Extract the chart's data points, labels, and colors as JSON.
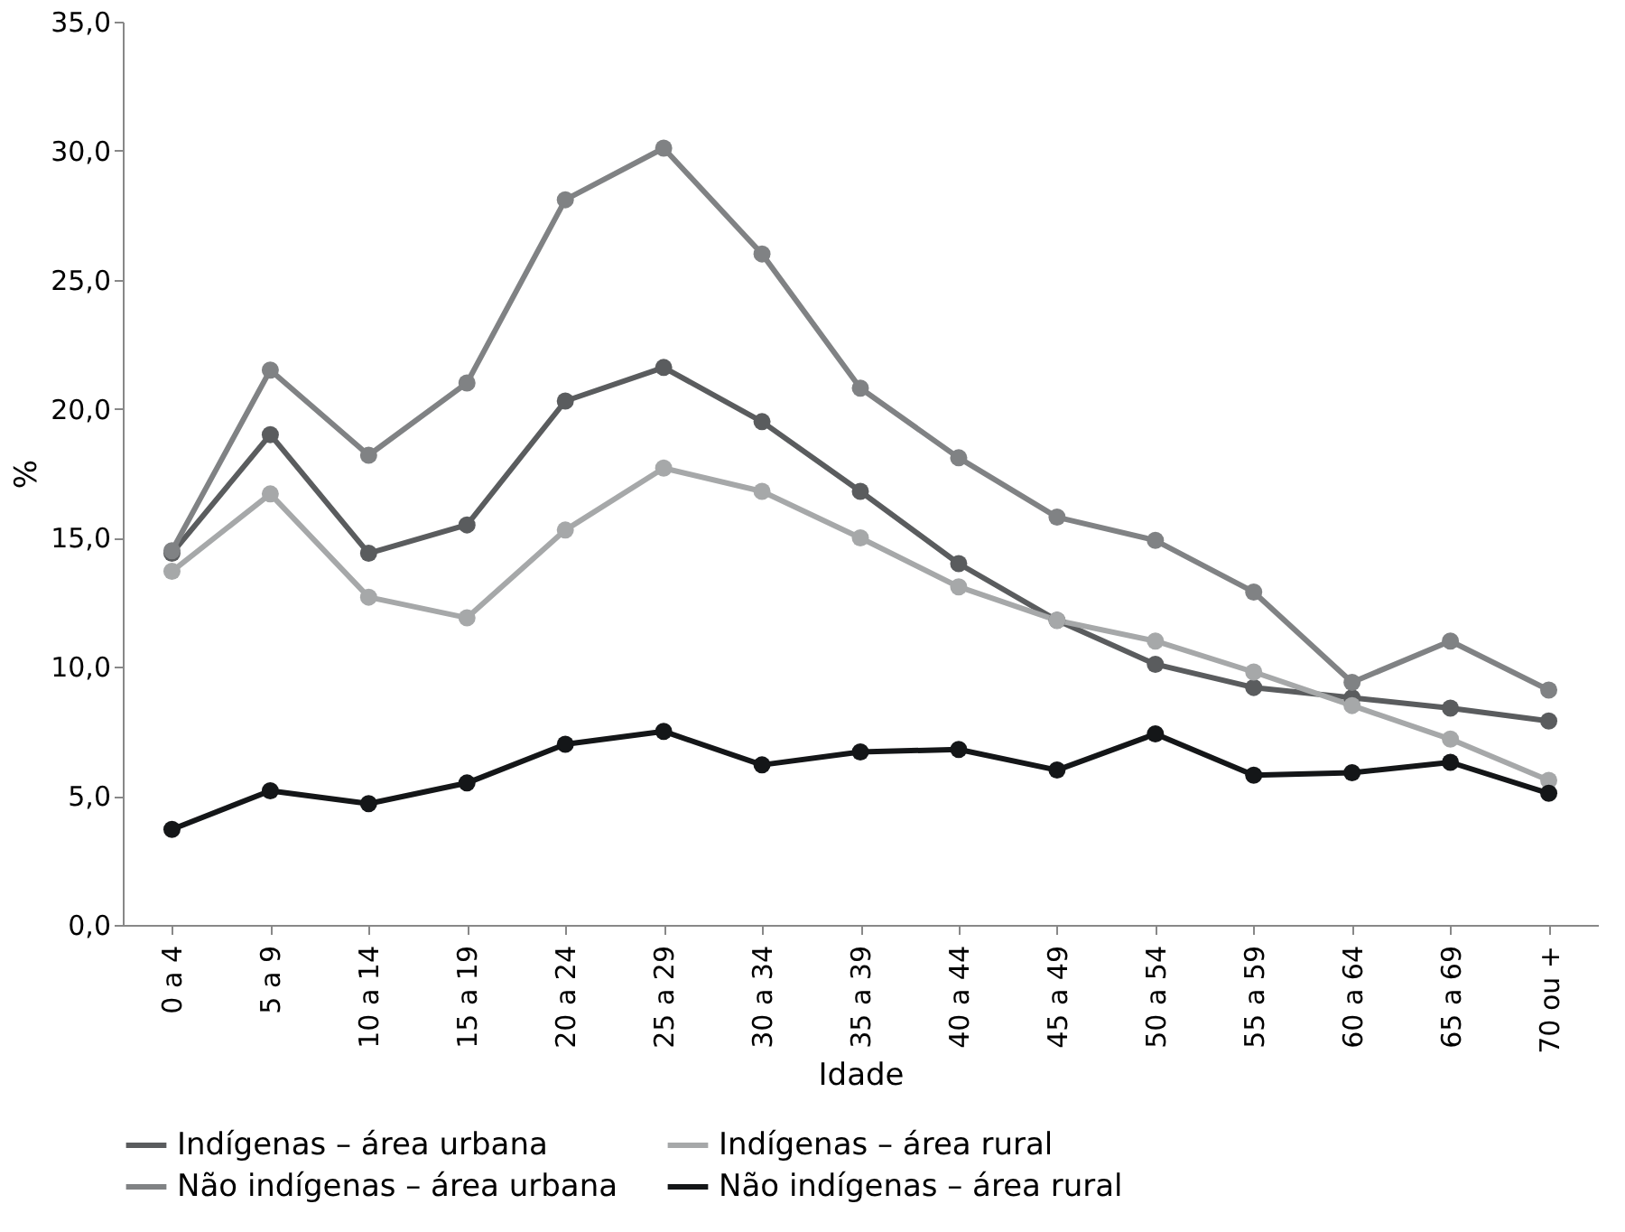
{
  "chart_data": {
    "type": "line",
    "xlabel": "Idade",
    "ylabel": "%",
    "categories": [
      "0 a 4",
      "5 a 9",
      "10 a 14",
      "15 a 19",
      "20 a 24",
      "25 a 29",
      "30 a 34",
      "35 a 39",
      "40 a 44",
      "45 a 49",
      "50 a 54",
      "55 a 59",
      "60 a 64",
      "65 a 69",
      "70 ou +"
    ],
    "series": [
      {
        "name": "Indígenas – área urbana",
        "color": "#5a5c5e",
        "values": [
          14.4,
          19.0,
          14.4,
          15.5,
          20.3,
          21.6,
          19.5,
          16.8,
          14.0,
          11.8,
          10.1,
          9.2,
          8.8,
          8.4,
          7.9
        ]
      },
      {
        "name": "Indígenas – área rural",
        "color": "#a6a8a9",
        "values": [
          13.7,
          16.7,
          12.7,
          11.9,
          15.3,
          17.7,
          16.8,
          15.0,
          13.1,
          11.8,
          11.0,
          9.8,
          8.5,
          7.2,
          5.6
        ]
      },
      {
        "name": "Não indígenas – área urbana",
        "color": "#808284",
        "values": [
          14.5,
          21.5,
          18.2,
          21.0,
          28.1,
          30.1,
          26.0,
          20.8,
          18.1,
          15.8,
          14.9,
          12.9,
          9.4,
          11.0,
          9.1
        ]
      },
      {
        "name": "Não indígenas – área rural",
        "color": "#141618",
        "values": [
          3.7,
          5.2,
          4.7,
          5.5,
          7.0,
          7.5,
          6.2,
          6.7,
          6.8,
          6.0,
          7.4,
          5.8,
          5.9,
          6.3,
          5.1
        ]
      }
    ],
    "ylim": [
      0,
      35
    ],
    "yticks": [
      {
        "value": 0,
        "label": "0,0"
      },
      {
        "value": 5,
        "label": "5,0"
      },
      {
        "value": 10,
        "label": "10,0"
      },
      {
        "value": 15,
        "label": "15,0"
      },
      {
        "value": 20,
        "label": "20,0"
      },
      {
        "value": 25,
        "label": "25,0"
      },
      {
        "value": 30,
        "label": "30,0"
      },
      {
        "value": 35,
        "label": "35,0"
      }
    ],
    "grid": false,
    "legend": "bottom",
    "marker": "circle",
    "line_style": "solid"
  }
}
